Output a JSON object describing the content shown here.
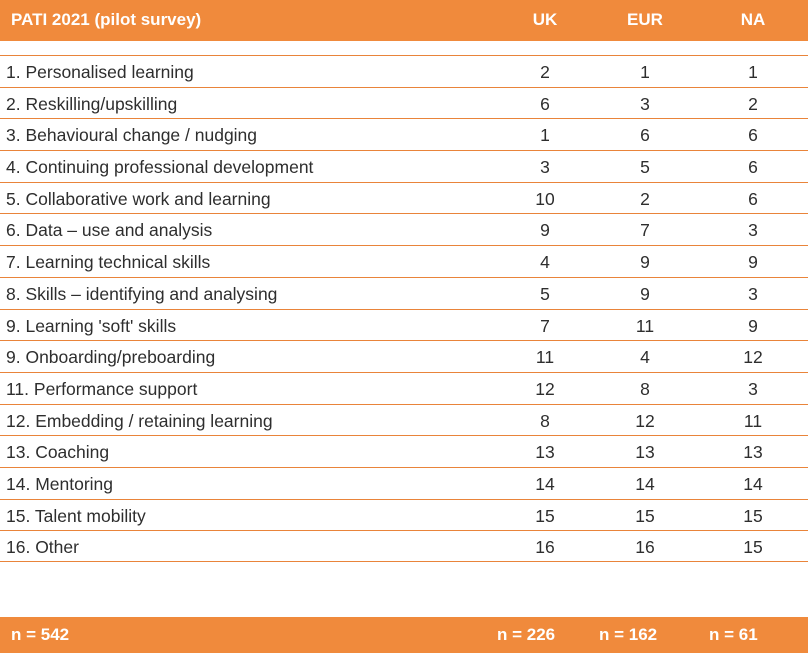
{
  "header": {
    "title": "PATI 2021 (pilot survey)",
    "columns": [
      "UK",
      "EUR",
      "NA"
    ]
  },
  "rows": [
    {
      "label": "1. Personalised learning",
      "uk": "2",
      "eur": "1",
      "na": "1"
    },
    {
      "label": "2. Reskilling/upskilling",
      "uk": "6",
      "eur": "3",
      "na": "2"
    },
    {
      "label": "3. Behavioural change / nudging",
      "uk": "1",
      "eur": "6",
      "na": "6"
    },
    {
      "label": "4. Continuing professional development",
      "uk": "3",
      "eur": "5",
      "na": "6"
    },
    {
      "label": "5. Collaborative work and learning",
      "uk": "10",
      "eur": "2",
      "na": "6"
    },
    {
      "label": "6. Data – use and analysis",
      "uk": "9",
      "eur": "7",
      "na": "3"
    },
    {
      "label": "7. Learning technical skills",
      "uk": "4",
      "eur": "9",
      "na": "9"
    },
    {
      "label": "8. Skills – identifying and analysing",
      "uk": "5",
      "eur": "9",
      "na": "3"
    },
    {
      "label": "9. Learning 'soft' skills",
      "uk": "7",
      "eur": "11",
      "na": "9"
    },
    {
      "label": "9. Onboarding/preboarding",
      "uk": "11",
      "eur": "4",
      "na": "12"
    },
    {
      "label": "11. Performance support",
      "uk": "12",
      "eur": "8",
      "na": "3"
    },
    {
      "label": "12. Embedding / retaining learning",
      "uk": "8",
      "eur": "12",
      "na": "11"
    },
    {
      "label": "13. Coaching",
      "uk": "13",
      "eur": "13",
      "na": "13"
    },
    {
      "label": "14. Mentoring",
      "uk": "14",
      "eur": "14",
      "na": "14"
    },
    {
      "label": "15. Talent mobility",
      "uk": "15",
      "eur": "15",
      "na": "15"
    },
    {
      "label": "16. Other",
      "uk": "16",
      "eur": "16",
      "na": "15"
    }
  ],
  "footer": {
    "total": "n = 542",
    "uk": "n = 226",
    "eur": "n = 162",
    "na": "n = 61"
  },
  "colors": {
    "accent": "#F08A3C",
    "rule": "#E9843A",
    "text": "#2e2e2e"
  }
}
